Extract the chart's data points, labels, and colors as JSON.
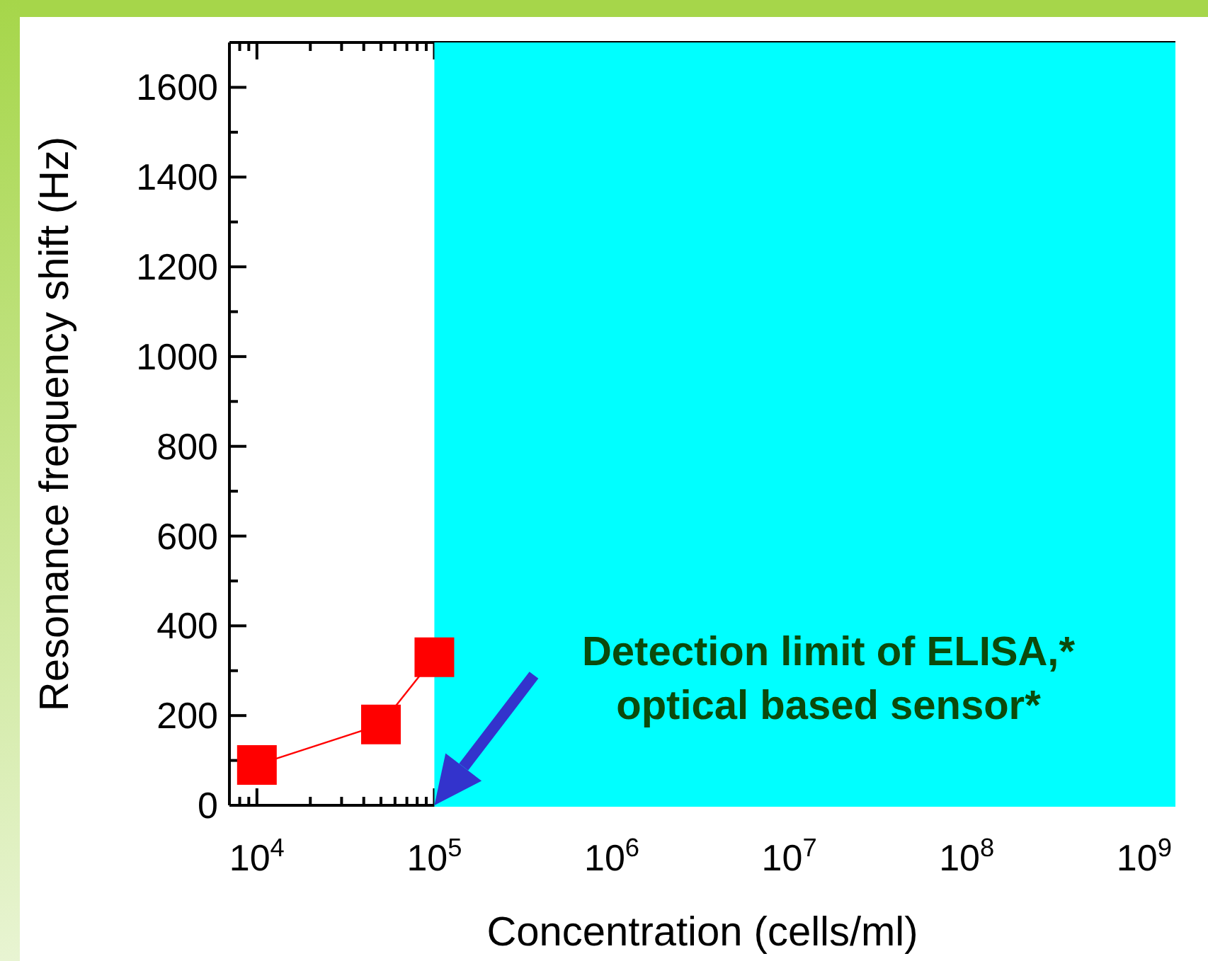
{
  "chart_data": {
    "type": "line",
    "xlabel": "Concentration (cells/ml)",
    "ylabel": "Resonance frequency shift (Hz)",
    "x": [
      10000,
      50000,
      100000
    ],
    "series": [
      {
        "color": "#ff0000",
        "values": [
          90,
          180,
          330
        ]
      }
    ],
    "marker": "square",
    "log": "x",
    "grid": false,
    "xlim": [
      7000,
      1500000000
    ],
    "xticks": [
      {
        "value": 10000,
        "label": "10$^{4}$"
      },
      {
        "value": 100000,
        "label": "10$^{5}$"
      },
      {
        "value": 1000000,
        "label": "10$^{6}$"
      },
      {
        "value": 10000000,
        "label": "10$^{7}$"
      },
      {
        "value": 100000000,
        "label": "10$^{8}$"
      },
      {
        "value": 1000000000,
        "label": "10$^{9}$"
      }
    ],
    "ylim": [
      0,
      1700
    ],
    "yticks": [
      0,
      200,
      400,
      600,
      800,
      1000,
      1200,
      1400,
      1600
    ],
    "bands": [
      {
        "axis": "x",
        "from": 100000,
        "to": 1500000000,
        "color": "#00ffff"
      }
    ],
    "annotations": [
      "Detection limit of ELISA,*\noptical based sensor*"
    ]
  }
}
